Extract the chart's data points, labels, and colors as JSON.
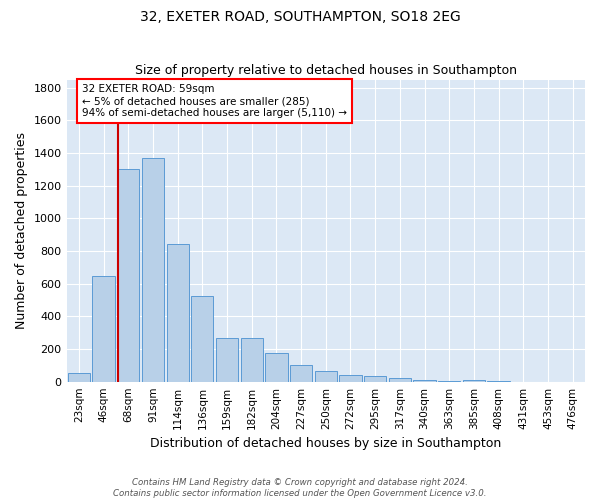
{
  "title": "32, EXETER ROAD, SOUTHAMPTON, SO18 2EG",
  "subtitle": "Size of property relative to detached houses in Southampton",
  "xlabel": "Distribution of detached houses by size in Southampton",
  "ylabel": "Number of detached properties",
  "footer_line1": "Contains HM Land Registry data © Crown copyright and database right 2024.",
  "footer_line2": "Contains public sector information licensed under the Open Government Licence v3.0.",
  "annotation_title": "32 EXETER ROAD: 59sqm",
  "annotation_line2": "← 5% of detached houses are smaller (285)",
  "annotation_line3": "94% of semi-detached houses are larger (5,110) →",
  "bar_color": "#b8d0e8",
  "bar_edgecolor": "#5b9bd5",
  "vline_color": "#cc0000",
  "background_color": "#dce8f5",
  "categories": [
    "23sqm",
    "46sqm",
    "68sqm",
    "91sqm",
    "114sqm",
    "136sqm",
    "159sqm",
    "182sqm",
    "204sqm",
    "227sqm",
    "250sqm",
    "272sqm",
    "295sqm",
    "317sqm",
    "340sqm",
    "363sqm",
    "385sqm",
    "408sqm",
    "431sqm",
    "453sqm",
    "476sqm"
  ],
  "values": [
    55,
    645,
    1300,
    1370,
    845,
    525,
    270,
    270,
    175,
    103,
    63,
    38,
    33,
    22,
    10,
    7,
    9,
    2,
    0,
    0,
    0
  ],
  "ylim": [
    0,
    1850
  ],
  "yticks": [
    0,
    200,
    400,
    600,
    800,
    1000,
    1200,
    1400,
    1600,
    1800
  ],
  "vline_x_index": 1.575,
  "figsize": [
    6.0,
    5.0
  ],
  "dpi": 100
}
